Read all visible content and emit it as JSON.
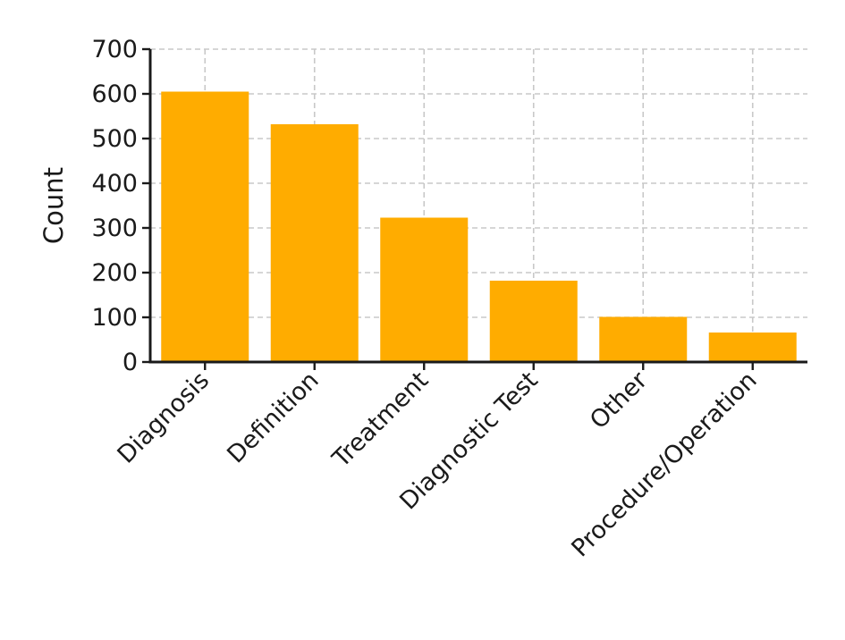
{
  "chart_data": {
    "type": "bar",
    "categories": [
      "Diagnosis",
      "Definition",
      "Treatment",
      "Diagnostic Test",
      "Other",
      "Procedure/Operation"
    ],
    "values": [
      605,
      532,
      323,
      182,
      101,
      66
    ],
    "ylabel": "Count",
    "xlabel": "",
    "ylim": [
      0,
      700
    ],
    "yticks": [
      "0",
      "100",
      "200",
      "300",
      "400",
      "500",
      "600",
      "700"
    ],
    "grid": true,
    "bar_color": "#FFAC00",
    "legend": false
  }
}
